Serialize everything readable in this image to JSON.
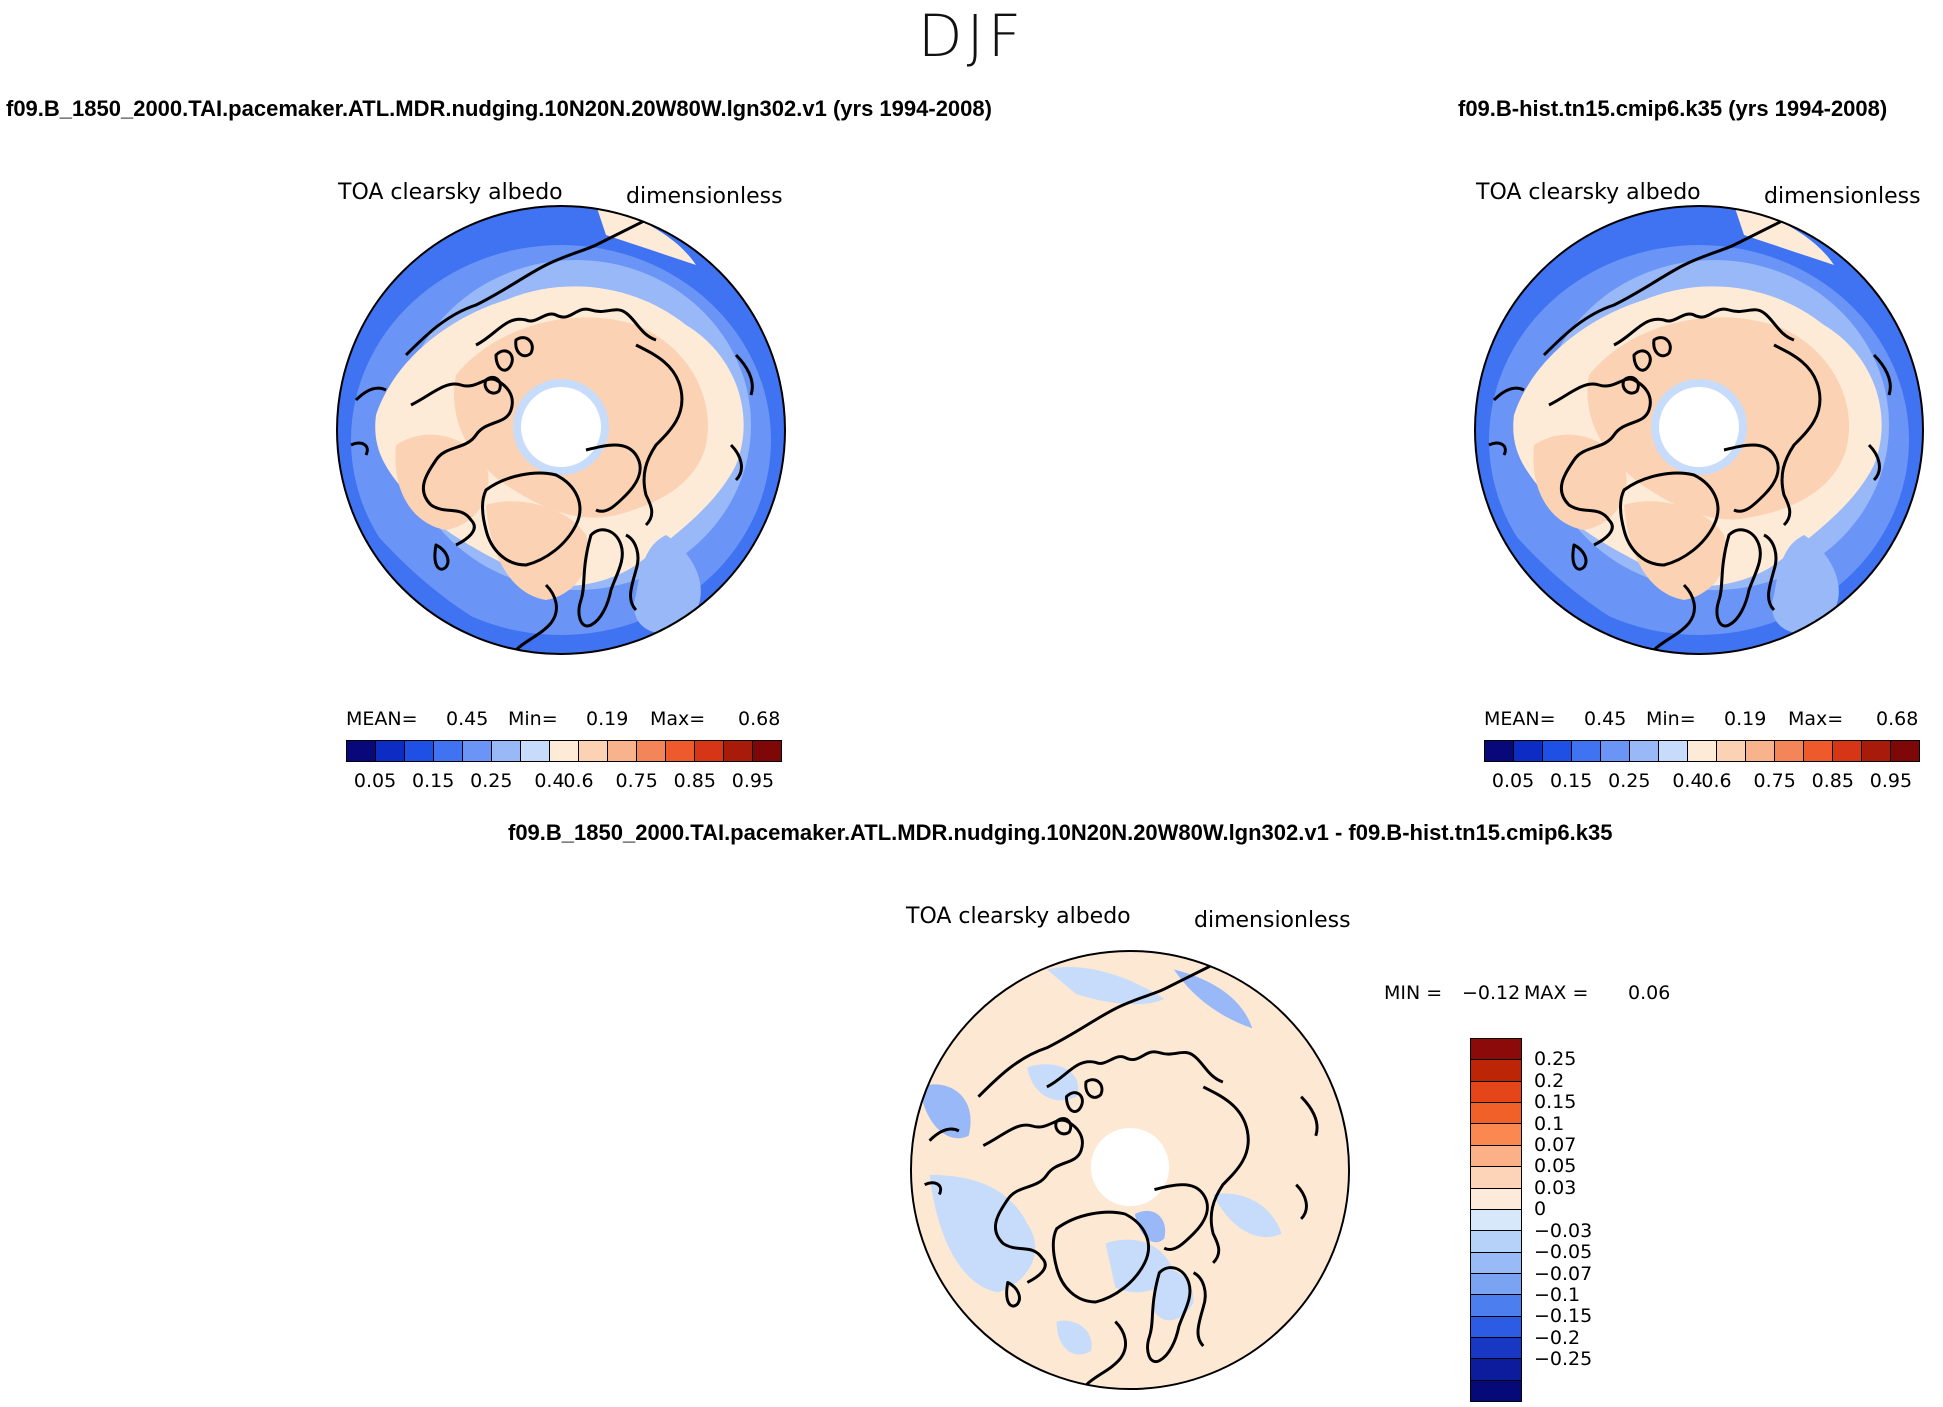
{
  "figure": {
    "season": "DJF"
  },
  "panels": {
    "left": {
      "case_title": "f09.B_1850_2000.TAI.pacemaker.ATL.MDR.nudging.10N20N.20W80W.lgn302.v1 (yrs 1994-2008)",
      "variable": "TOA clearsky albedo",
      "units": "dimensionless",
      "mean_label": "MEAN=",
      "mean_value": "0.45",
      "min_label": "Min=",
      "min_value": "0.19",
      "max_label": "Max=",
      "max_value": "0.68"
    },
    "right": {
      "case_title": "f09.B-hist.tn15.cmip6.k35 (yrs 1994-2008)",
      "variable": "TOA clearsky albedo",
      "units": "dimensionless",
      "mean_label": "MEAN=",
      "mean_value": "0.45",
      "min_label": "Min=",
      "min_value": "0.19",
      "max_label": "Max=",
      "max_value": "0.68"
    },
    "diff": {
      "case_title": "f09.B_1850_2000.TAI.pacemaker.ATL.MDR.nudging.10N20N.20W80W.lgn302.v1 - f09.B-hist.tn15.cmip6.k35",
      "variable": "TOA clearsky albedo",
      "units": "dimensionless",
      "min_label": "MIN =",
      "min_value": "−0.12",
      "max_label": "MAX =",
      "max_value": "0.06"
    }
  },
  "colorbar_abs": {
    "colors": [
      "#08087a",
      "#0c2cc4",
      "#1f50e6",
      "#3f73f2",
      "#6a95f6",
      "#98b8f8",
      "#c6dcfa",
      "#fdebd8",
      "#fbd2b4",
      "#f8b28c",
      "#f48558",
      "#ee5a2c",
      "#d63616",
      "#a81a0a",
      "#7e0808"
    ],
    "tick_labels": [
      "0.05",
      "0.15",
      "0.25",
      "0.4",
      "0.6",
      "0.75",
      "0.85",
      "0.95"
    ]
  },
  "colorbar_diff": {
    "colors": [
      "#8c0a0a",
      "#bc2606",
      "#e4461a",
      "#f06028",
      "#fa8850",
      "#fcb088",
      "#fdd4b8",
      "#feeadb",
      "#d6e8fa",
      "#b6d2f8",
      "#98baf6",
      "#7aa4f2",
      "#4c7ef0",
      "#2c5ce4",
      "#1838c4",
      "#0c1c9c",
      "#060a78"
    ],
    "tick_labels": [
      "0.25",
      "0.2",
      "0.15",
      "0.1",
      "0.07",
      "0.05",
      "0.03",
      "0",
      "−0.03",
      "−0.05",
      "−0.07",
      "−0.1",
      "−0.15",
      "−0.2",
      "−0.25"
    ]
  },
  "map_colors": {
    "ocean_deep": "#3f73f2",
    "ocean_mid": "#6a95f6",
    "ocean_light": "#98b8f8",
    "ocean_pale": "#c6dcfa",
    "land_pale": "#fdebd8",
    "land_warm": "#fbd2b4",
    "diff_base": "#fde8d4",
    "diff_cool": "#c6dcfa",
    "diff_cooler": "#98b8f8",
    "coast": "#000000"
  }
}
